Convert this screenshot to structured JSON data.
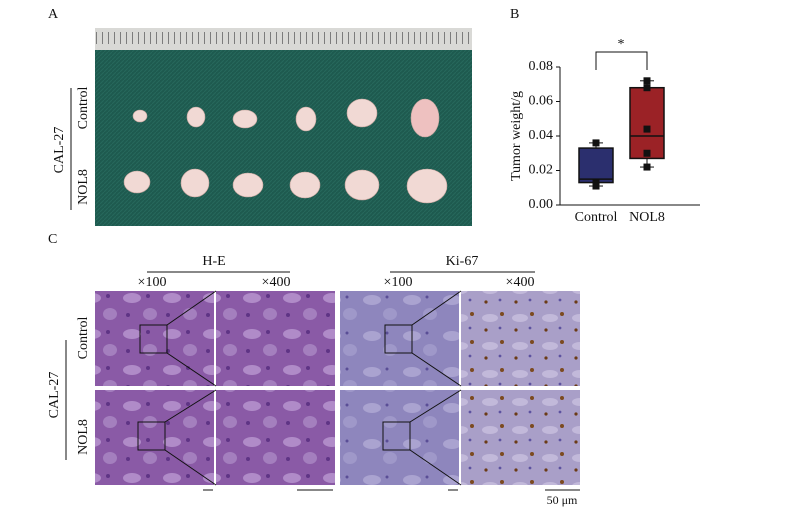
{
  "panels": {
    "a": "A",
    "b": "B",
    "c": "C"
  },
  "panel_a": {
    "cell_line": "CAL-27",
    "rows": [
      "Control",
      "NOL8"
    ]
  },
  "chart_data": {
    "type": "box",
    "ylabel": "Tumor weight/g",
    "annotation": "*",
    "categories": [
      "Control",
      "NOL8"
    ],
    "boxes": [
      {
        "color": "#2b2f6e",
        "min": 0.011,
        "q1": 0.013,
        "median": 0.015,
        "q3": 0.033,
        "max": 0.036,
        "points": [
          0.036,
          0.013,
          0.012,
          0.011
        ]
      },
      {
        "color": "#9b2226",
        "min": 0.022,
        "q1": 0.027,
        "median": 0.04,
        "q3": 0.068,
        "max": 0.072,
        "points": [
          0.072,
          0.068,
          0.044,
          0.03,
          0.022
        ]
      }
    ],
    "ylim": [
      0,
      0.08
    ],
    "yticks": [
      {
        "value": 0,
        "label": "0.00"
      },
      {
        "value": 0.02,
        "label": "0.02"
      },
      {
        "value": 0.04,
        "label": "0.04"
      },
      {
        "value": 0.06,
        "label": "0.06"
      },
      {
        "value": 0.08,
        "label": "0.08"
      }
    ]
  },
  "panel_c": {
    "cell_line": "CAL-27",
    "rows": [
      "Control",
      "NOL8"
    ],
    "stains": [
      {
        "name": "H-E",
        "magnifications": [
          "×100",
          "×400"
        ]
      },
      {
        "name": "Ki-67",
        "magnifications": [
          "×100",
          "×400"
        ]
      }
    ],
    "scale_bar": "50 μm"
  }
}
